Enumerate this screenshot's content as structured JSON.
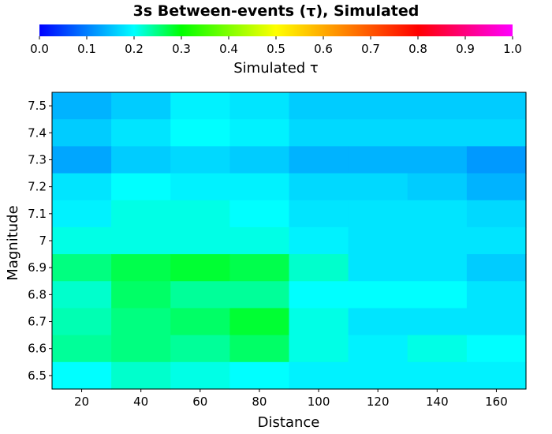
{
  "chart_data": {
    "type": "heatmap",
    "title": "3s Between-events (τ), Simulated",
    "colorbar": {
      "label": "Simulated τ",
      "range": [
        0.0,
        1.0
      ],
      "ticks": [
        "0.0",
        "0.1",
        "0.2",
        "0.3",
        "0.4",
        "0.5",
        "0.6",
        "0.7",
        "0.8",
        "0.9",
        "1.0"
      ]
    },
    "xlabel": "Distance",
    "ylabel": "Magnitude",
    "x_range": [
      10,
      170
    ],
    "x_ticks": [
      20,
      40,
      60,
      80,
      100,
      120,
      140,
      160
    ],
    "x_tick_labels": [
      "20",
      "40",
      "60",
      "80",
      "100",
      "120",
      "140",
      "160"
    ],
    "y_range": [
      6.45,
      7.55
    ],
    "y_ticks": [
      6.5,
      6.6,
      6.7,
      6.8,
      6.9,
      7.0,
      7.1,
      7.2,
      7.3,
      7.4,
      7.5
    ],
    "y_tick_labels": [
      "6.5",
      "6.6",
      "6.7",
      "6.8",
      "6.9",
      "7",
      "7.1",
      "7.2",
      "7.3",
      "7.4",
      "7.5"
    ],
    "x_centers": [
      20,
      40,
      60,
      80,
      100,
      120,
      140,
      160
    ],
    "y_centers": [
      7.5,
      7.4,
      7.3,
      7.2,
      7.1,
      7.0,
      6.9,
      6.8,
      6.7,
      6.6,
      6.5
    ],
    "z": [
      [
        0.14,
        0.16,
        0.19,
        0.18,
        0.16,
        0.16,
        0.16,
        0.16
      ],
      [
        0.16,
        0.18,
        0.2,
        0.19,
        0.17,
        0.17,
        0.17,
        0.17
      ],
      [
        0.13,
        0.16,
        0.17,
        0.16,
        0.14,
        0.14,
        0.14,
        0.12
      ],
      [
        0.18,
        0.2,
        0.19,
        0.19,
        0.17,
        0.17,
        0.16,
        0.14
      ],
      [
        0.19,
        0.21,
        0.21,
        0.2,
        0.18,
        0.18,
        0.18,
        0.17
      ],
      [
        0.21,
        0.21,
        0.21,
        0.21,
        0.19,
        0.18,
        0.18,
        0.18
      ],
      [
        0.25,
        0.27,
        0.28,
        0.27,
        0.22,
        0.18,
        0.18,
        0.16
      ],
      [
        0.22,
        0.26,
        0.24,
        0.24,
        0.2,
        0.2,
        0.2,
        0.18
      ],
      [
        0.23,
        0.25,
        0.26,
        0.28,
        0.21,
        0.18,
        0.18,
        0.18
      ],
      [
        0.24,
        0.25,
        0.24,
        0.26,
        0.21,
        0.19,
        0.21,
        0.2
      ],
      [
        0.2,
        0.22,
        0.21,
        0.2,
        0.19,
        0.19,
        0.19,
        0.19
      ]
    ]
  }
}
